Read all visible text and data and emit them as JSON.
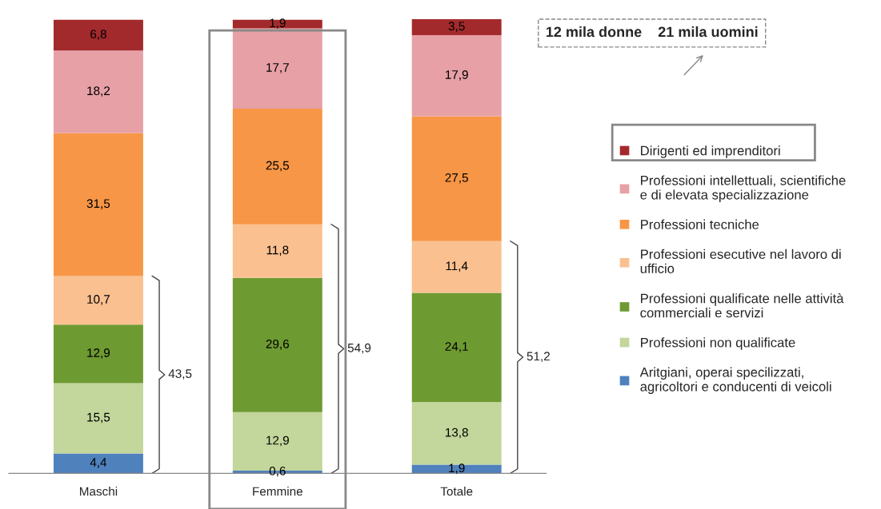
{
  "chart_data": {
    "type": "bar",
    "stacked": true,
    "categories": [
      "Maschi",
      "Femmine",
      "Totale"
    ],
    "series": [
      {
        "name": "Aritgiani, operai specilizzati, agricoltori e conducenti di veicoli",
        "color": "#4f81bd",
        "values": [
          4.4,
          0.6,
          1.9
        ],
        "value_labels": [
          "4,4",
          "0,6",
          "1,9"
        ]
      },
      {
        "name": "Professioni non qualificate",
        "color": "#c3d69b",
        "values": [
          15.5,
          12.9,
          13.8
        ],
        "value_labels": [
          "15,5",
          "12,9",
          "13,8"
        ]
      },
      {
        "name": "Professioni qualificate nelle attività commerciali e servizi",
        "color": "#6e9a32",
        "values": [
          12.9,
          29.6,
          24.1
        ],
        "value_labels": [
          "12,9",
          "29,6",
          "24,1"
        ]
      },
      {
        "name": "Professioni esecutive nel lavoro di ufficio",
        "color": "#fac090",
        "values": [
          10.7,
          11.8,
          11.4
        ],
        "value_labels": [
          "10,7",
          "11,8",
          "11,4"
        ]
      },
      {
        "name": "Professioni tecniche",
        "color": "#f79646",
        "values": [
          31.5,
          25.5,
          27.5
        ],
        "value_labels": [
          "31,5",
          "25,5",
          "27,5"
        ]
      },
      {
        "name": "Professioni intellettuali, scientifiche e di elevata specializzazione",
        "color": "#e6a0a6",
        "values": [
          18.2,
          17.7,
          17.9
        ],
        "value_labels": [
          "18,2",
          "17,7",
          "17,9"
        ]
      },
      {
        "name": "Dirigenti ed imprenditori",
        "color": "#a32a2c",
        "values": [
          6.8,
          1.9,
          3.5
        ],
        "value_labels": [
          "6,8",
          "1,9",
          "3,5"
        ]
      }
    ],
    "annotations": [
      "43,5",
      "54,9",
      "51,2",
      "12 mila donne    21 mila uomini"
    ],
    "legend": "right",
    "grid": false
  }
}
